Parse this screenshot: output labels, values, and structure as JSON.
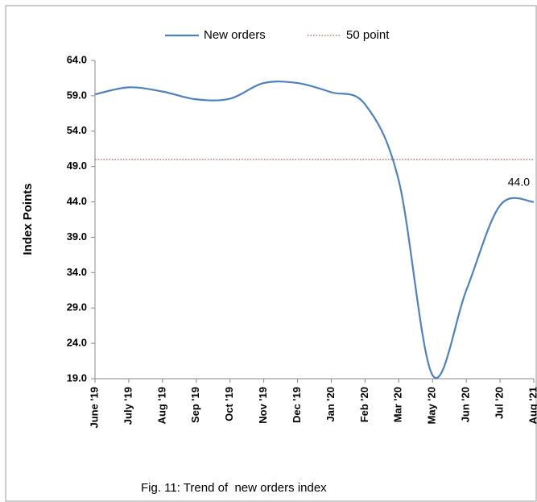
{
  "chart_data": {
    "type": "line",
    "y_label": "Index Points",
    "caption": "Fig. 11: Trend of  new orders index",
    "categories": [
      "June '19",
      "July '19",
      "Aug '19",
      "Sep '19",
      "Oct '19",
      "Nov '19",
      "Dec '19",
      "Jan '20",
      "Feb '20",
      "Mar '20",
      "May '20",
      "Jun '20",
      "Jul '20",
      "Aug '21"
    ],
    "series": [
      {
        "name": "New orders",
        "color": "#4f81bd",
        "style": "solid",
        "values": [
          59.2,
          60.2,
          59.6,
          58.5,
          58.6,
          60.8,
          60.8,
          59.5,
          57.8,
          47.0,
          19.5,
          31.5,
          43.5,
          44.0
        ],
        "value_labels": [
          null,
          null,
          null,
          null,
          null,
          null,
          null,
          null,
          null,
          null,
          null,
          null,
          null,
          "44.0"
        ]
      },
      {
        "name": "50 point",
        "color": "#c0504d",
        "style": "dotted",
        "values": [
          50,
          50,
          50,
          50,
          50,
          50,
          50,
          50,
          50,
          50,
          50,
          50,
          50,
          50
        ]
      }
    ],
    "ylim": [
      19,
      64
    ],
    "yticks": [
      {
        "value": 19,
        "label": "19.0"
      },
      {
        "value": 24,
        "label": "24.0"
      },
      {
        "value": 29,
        "label": "29.0"
      },
      {
        "value": 34,
        "label": "34.0"
      },
      {
        "value": 39,
        "label": "39.0"
      },
      {
        "value": 44,
        "label": "44.0"
      },
      {
        "value": 49,
        "label": "49.0"
      },
      {
        "value": 54,
        "label": "54.0"
      },
      {
        "value": 59,
        "label": "59.0"
      },
      {
        "value": 64,
        "label": "64.0"
      }
    ],
    "legend": "top"
  }
}
